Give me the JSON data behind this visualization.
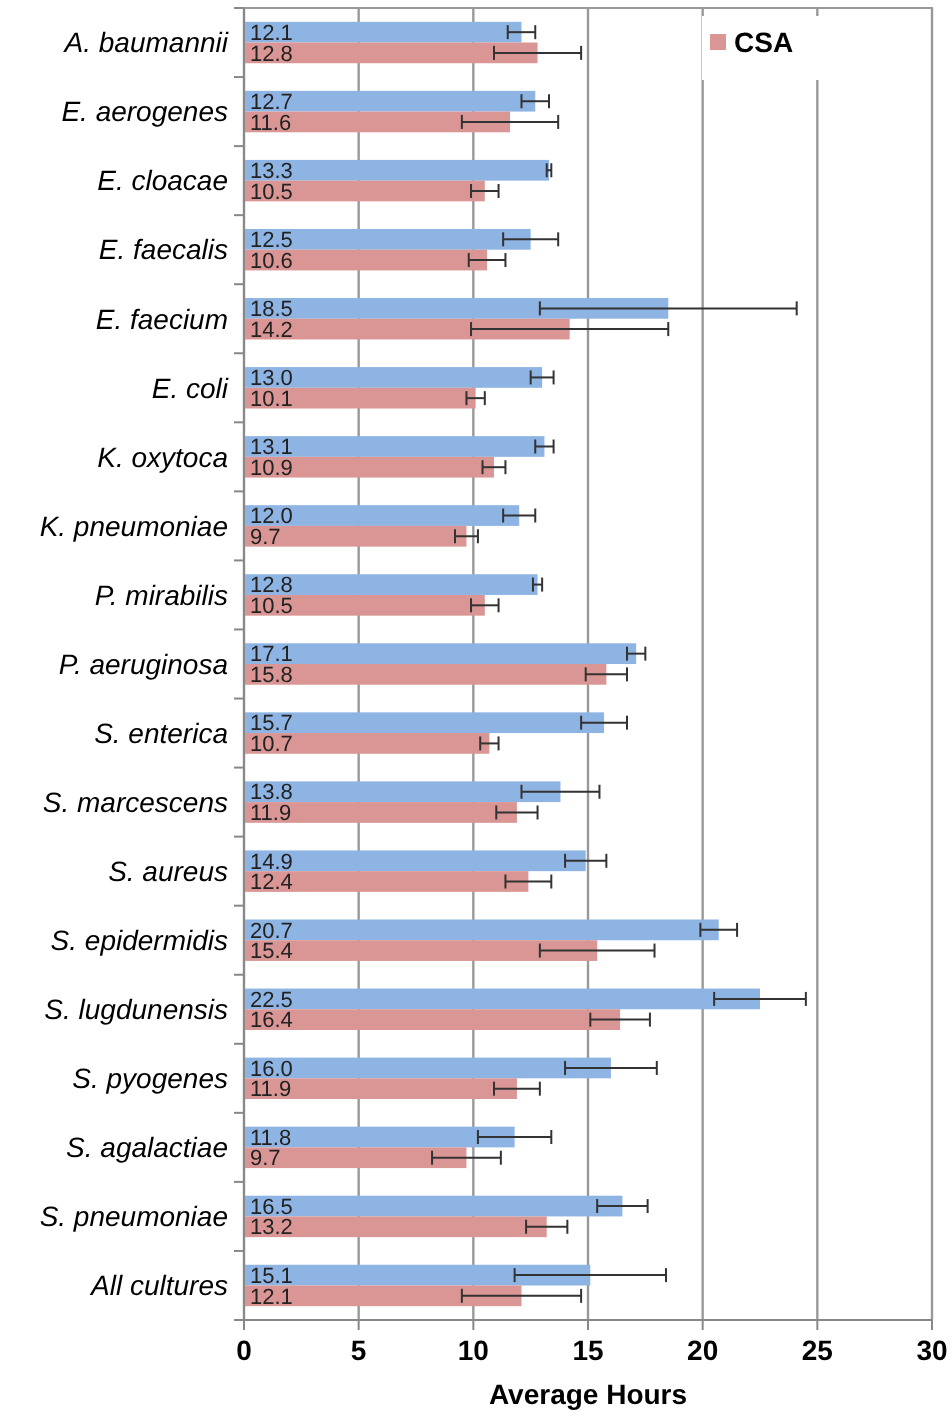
{
  "chart_data": {
    "type": "bar",
    "orientation": "horizontal",
    "xlabel": "Average Hours",
    "categories": [
      "A. baumannii",
      "E. aerogenes",
      "E. cloacae",
      "E. faecalis",
      "E. faecium",
      "E. coli",
      "K. oxytoca",
      "K. pneumoniae",
      "P. mirabilis",
      "P. aeruginosa",
      "S. enterica",
      "S. marcescens",
      "S. aureus",
      "S. epidermidis",
      "S. lugdunensis",
      "S. pyogenes",
      "S. agalactiae",
      "S. pneumoniae",
      "All cultures"
    ],
    "series": [
      {
        "color": "#8eb4e3",
        "values": [
          12.1,
          12.7,
          13.3,
          12.5,
          18.5,
          13.0,
          13.1,
          12.0,
          12.8,
          17.1,
          15.7,
          13.8,
          14.9,
          20.7,
          22.5,
          16.0,
          11.8,
          16.5,
          15.1
        ],
        "errors": [
          0.6,
          0.6,
          0.1,
          1.2,
          5.6,
          0.5,
          0.4,
          0.7,
          0.2,
          0.4,
          1.0,
          1.7,
          0.9,
          0.8,
          2.0,
          2.0,
          1.6,
          1.1,
          3.3
        ],
        "value_labels": [
          "12.1",
          "12.7",
          "13.3",
          "12.5",
          "18.5",
          "13.0",
          "13.1",
          "12.0",
          "12.8",
          "17.1",
          "15.7",
          "13.8",
          "14.9",
          "20.7",
          "22.5",
          "16.0",
          "11.8",
          "16.5",
          "15.1"
        ]
      },
      {
        "name": "CSA",
        "color": "#d99694",
        "values": [
          12.8,
          11.6,
          10.5,
          10.6,
          14.2,
          10.1,
          10.9,
          9.7,
          10.5,
          15.8,
          10.7,
          11.9,
          12.4,
          15.4,
          16.4,
          11.9,
          9.7,
          13.2,
          12.1
        ],
        "errors": [
          1.9,
          2.1,
          0.6,
          0.8,
          4.3,
          0.4,
          0.5,
          0.5,
          0.6,
          0.9,
          0.4,
          0.9,
          1.0,
          2.5,
          1.3,
          1.0,
          1.5,
          0.9,
          2.6
        ],
        "value_labels": [
          "12.8",
          "11.6",
          "10.5",
          "10.6",
          "14.2",
          "10.1",
          "10.9",
          "9.7",
          "10.5",
          "15.8",
          "10.7",
          "11.9",
          "12.4",
          "15.4",
          "16.4",
          "11.9",
          "9.7",
          "13.2",
          "12.1"
        ]
      }
    ],
    "xlim": [
      0,
      30
    ],
    "xticks": [
      0,
      5,
      10,
      15,
      20,
      25,
      30
    ],
    "grid": "x",
    "legend": "top right"
  }
}
